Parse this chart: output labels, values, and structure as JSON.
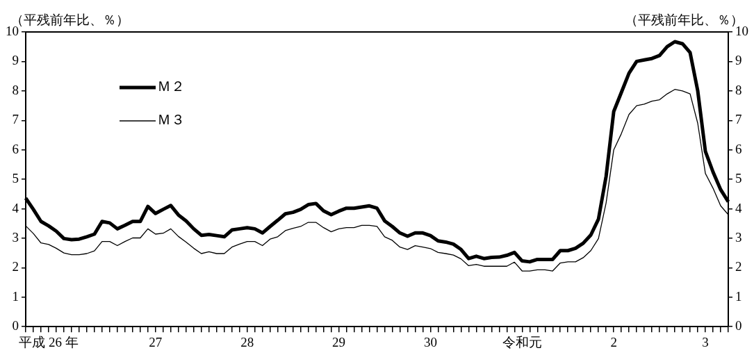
{
  "chart_data": {
    "type": "line",
    "ylabel": "（平残前年比、％）",
    "y2label": "（平残前年比、％）",
    "categories": [
      null,
      null,
      null,
      "平成 26 年",
      null,
      null,
      null,
      null,
      null,
      null,
      null,
      null,
      null,
      null,
      null,
      null,
      null,
      "27",
      null,
      null,
      null,
      null,
      null,
      null,
      null,
      null,
      null,
      null,
      null,
      "28",
      null,
      null,
      null,
      null,
      null,
      null,
      null,
      null,
      null,
      null,
      null,
      "29",
      null,
      null,
      null,
      null,
      null,
      null,
      null,
      null,
      null,
      null,
      null,
      "30",
      null,
      null,
      null,
      null,
      null,
      null,
      null,
      null,
      null,
      null,
      null,
      "令和元",
      null,
      null,
      null,
      null,
      null,
      null,
      null,
      null,
      null,
      null,
      null,
      "2",
      null,
      null,
      null,
      null,
      null,
      null,
      null,
      null,
      null,
      null,
      null,
      "3",
      null,
      null,
      null
    ],
    "series": [
      {
        "name": "Ｍ２",
        "color": "#000000",
        "values": [
          4.36,
          3.98,
          3.57,
          3.42,
          3.24,
          2.99,
          2.95,
          2.97,
          3.05,
          3.14,
          3.57,
          3.52,
          3.32,
          3.44,
          3.57,
          3.57,
          4.08,
          3.84,
          3.98,
          4.11,
          3.79,
          3.59,
          3.32,
          3.1,
          3.13,
          3.09,
          3.05,
          3.28,
          3.32,
          3.36,
          3.32,
          3.18,
          3.4,
          3.61,
          3.83,
          3.88,
          3.98,
          4.14,
          4.18,
          3.93,
          3.8,
          3.92,
          4.02,
          4.02,
          4.06,
          4.1,
          4.02,
          3.59,
          3.4,
          3.18,
          3.07,
          3.18,
          3.18,
          3.09,
          2.91,
          2.87,
          2.8,
          2.62,
          2.31,
          2.39,
          2.31,
          2.35,
          2.36,
          2.42,
          2.52,
          2.23,
          2.2,
          2.28,
          2.28,
          2.28,
          2.58,
          2.58,
          2.66,
          2.83,
          3.11,
          3.65,
          5.1,
          7.3,
          7.95,
          8.6,
          9.0,
          9.05,
          9.1,
          9.2,
          9.5,
          9.67,
          9.6,
          9.3,
          8.0,
          5.95,
          5.25,
          4.65,
          4.24
        ]
      },
      {
        "name": "Ｍ３",
        "color": "#000000",
        "values": [
          3.42,
          3.16,
          2.84,
          2.79,
          2.66,
          2.5,
          2.44,
          2.44,
          2.48,
          2.57,
          2.89,
          2.89,
          2.75,
          2.89,
          3.01,
          3.01,
          3.32,
          3.14,
          3.17,
          3.32,
          3.06,
          2.87,
          2.66,
          2.48,
          2.54,
          2.48,
          2.48,
          2.7,
          2.8,
          2.89,
          2.89,
          2.75,
          2.97,
          3.05,
          3.26,
          3.34,
          3.4,
          3.54,
          3.54,
          3.36,
          3.22,
          3.32,
          3.36,
          3.36,
          3.44,
          3.44,
          3.4,
          3.05,
          2.93,
          2.7,
          2.62,
          2.75,
          2.7,
          2.65,
          2.52,
          2.48,
          2.43,
          2.3,
          2.07,
          2.11,
          2.05,
          2.05,
          2.05,
          2.05,
          2.19,
          1.89,
          1.89,
          1.93,
          1.93,
          1.89,
          2.16,
          2.2,
          2.2,
          2.34,
          2.58,
          2.99,
          4.2,
          6.0,
          6.55,
          7.2,
          7.5,
          7.55,
          7.65,
          7.7,
          7.9,
          8.05,
          8.0,
          7.9,
          6.9,
          5.2,
          4.7,
          4.1,
          3.8
        ]
      }
    ],
    "ylim": [
      0,
      10
    ],
    "yticks": [
      0,
      1,
      2,
      3,
      4,
      5,
      6,
      7,
      8,
      9,
      10
    ],
    "y2lim": [
      0,
      10
    ],
    "y2ticks": [
      0,
      1,
      2,
      3,
      4,
      5,
      6,
      7,
      8,
      9,
      10
    ],
    "legend": "top left",
    "marker": "none",
    "line_style": "solid"
  }
}
